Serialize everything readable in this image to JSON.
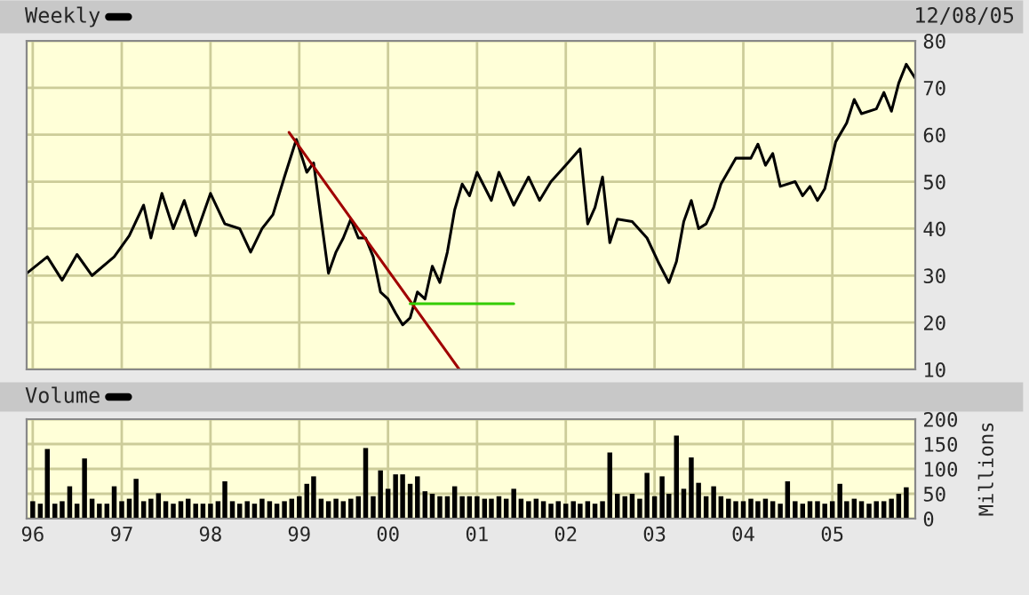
{
  "chart_data": [
    {
      "type": "line",
      "title": "Weekly",
      "annotations": [
        "12/08/05"
      ],
      "grid": true,
      "tick_labels": "y",
      "xlim": [
        "1995-12-07",
        "2005-12-08"
      ],
      "xticks": [
        {
          "value": "1996-01-01",
          "label": null
        },
        {
          "value": "1997-01-01",
          "label": null
        },
        {
          "value": "1998-01-01",
          "label": null
        },
        {
          "value": "1999-01-01",
          "label": null
        },
        {
          "value": "2000-01-01",
          "label": null
        },
        {
          "value": "2001-01-01",
          "label": null
        },
        {
          "value": "2002-01-01",
          "label": null
        },
        {
          "value": "2003-01-01",
          "label": null
        },
        {
          "value": "2004-01-01",
          "label": null
        },
        {
          "value": "2005-01-01",
          "label": null
        }
      ],
      "ylim": [
        10,
        80
      ],
      "yticks": [
        10,
        20,
        30,
        40,
        50,
        60,
        70,
        80
      ],
      "series": [
        {
          "color": "#000000",
          "x": [
            "1995-12-08",
            "1996-03-01",
            "1996-05-01",
            "1996-07-01",
            "1996-09-01",
            "1996-12-01",
            "1997-02-01",
            "1997-04-01",
            "1997-05-01",
            "1997-06-15",
            "1997-08-01",
            "1997-09-15",
            "1997-11-01",
            "1998-01-01",
            "1998-03-01",
            "1998-05-01",
            "1998-06-15",
            "1998-08-01",
            "1998-09-15",
            "1998-11-01",
            "1998-12-20",
            "1999-02-01",
            "1999-03-01",
            "1999-04-01",
            "1999-05-01",
            "1999-06-01",
            "1999-07-01",
            "1999-08-01",
            "1999-09-01",
            "1999-10-01",
            "1999-11-01",
            "1999-12-01",
            "2000-01-01",
            "2000-02-01",
            "2000-03-01",
            "2000-04-01",
            "2000-05-01",
            "2000-06-01",
            "2000-07-01",
            "2000-08-01",
            "2000-09-01",
            "2000-10-01",
            "2000-11-01",
            "2000-12-01",
            "2001-01-01",
            "2001-03-01",
            "2001-04-01",
            "2001-06-01",
            "2001-08-01",
            "2001-09-15",
            "2001-11-01",
            "2002-01-01",
            "2002-03-01",
            "2002-04-01",
            "2002-05-01",
            "2002-06-01",
            "2002-07-01",
            "2002-08-01",
            "2002-10-01",
            "2002-12-01",
            "2003-01-15",
            "2003-03-01",
            "2003-04-01",
            "2003-05-01",
            "2003-06-01",
            "2003-07-01",
            "2003-08-01",
            "2003-09-01",
            "2003-10-01",
            "2003-12-01",
            "2004-02-01",
            "2004-03-01",
            "2004-04-01",
            "2004-05-01",
            "2004-06-01",
            "2004-08-01",
            "2004-09-01",
            "2004-10-01",
            "2004-11-01",
            "2004-12-01",
            "2005-01-15",
            "2005-03-01",
            "2005-04-01",
            "2005-05-01",
            "2005-07-01",
            "2005-08-01",
            "2005-09-01",
            "2005-10-01",
            "2005-11-01",
            "2005-12-08"
          ],
          "values": [
            30.5,
            34,
            29,
            34.5,
            30,
            34,
            38.5,
            45,
            38,
            47.5,
            40,
            46,
            38.5,
            47.5,
            41,
            40,
            35,
            40,
            43,
            51,
            59,
            52,
            54,
            42,
            30.5,
            35,
            38,
            42,
            38,
            38,
            34,
            26.5,
            25,
            22,
            19.5,
            21,
            26.5,
            25,
            32,
            28.5,
            35,
            44,
            49.5,
            47,
            52,
            46,
            52,
            45,
            51,
            46,
            50,
            53.5,
            57,
            41,
            44.5,
            51,
            37,
            42,
            41.5,
            38,
            33,
            28.5,
            33,
            41.5,
            46,
            40,
            41,
            44.5,
            49.5,
            55,
            55,
            58,
            53.5,
            56,
            49,
            50,
            47,
            49,
            46,
            48.5,
            58.5,
            62.5,
            67.5,
            64.5,
            65.5,
            69,
            65,
            71,
            75,
            72
          ]
        },
        {
          "color": "#a00000",
          "x": [
            "1998-11-20",
            "2000-10-20"
          ],
          "values": [
            60.5,
            10
          ]
        },
        {
          "color": "#33cc00",
          "x": [
            "2000-04-01",
            "2001-06-01"
          ],
          "values": [
            24,
            24
          ]
        }
      ]
    },
    {
      "type": "bar",
      "title": "Volume",
      "ylabel": "Millions",
      "grid": true,
      "color": "#000000",
      "xlim": [
        "1995-12-07",
        "2005-12-08"
      ],
      "xticks": [
        {
          "value": "1996-01-01",
          "label": "96"
        },
        {
          "value": "1997-01-01",
          "label": "97"
        },
        {
          "value": "1998-01-01",
          "label": "98"
        },
        {
          "value": "1999-01-01",
          "label": "99"
        },
        {
          "value": "2000-01-01",
          "label": "00"
        },
        {
          "value": "2001-01-01",
          "label": "01"
        },
        {
          "value": "2002-01-01",
          "label": "02"
        },
        {
          "value": "2003-01-01",
          "label": "03"
        },
        {
          "value": "2004-01-01",
          "label": "04"
        },
        {
          "value": "2005-01-01",
          "label": "05"
        }
      ],
      "ylim": [
        0,
        200
      ],
      "yticks": [
        0,
        50,
        100,
        150,
        200
      ],
      "x": [
        "1996-01-01",
        "1996-02-01",
        "1996-03-01",
        "1996-04-01",
        "1996-05-01",
        "1996-06-01",
        "1996-07-01",
        "1996-08-01",
        "1996-09-01",
        "1996-10-01",
        "1996-11-01",
        "1996-12-01",
        "1997-01-01",
        "1997-02-01",
        "1997-03-01",
        "1997-04-01",
        "1997-05-01",
        "1997-06-01",
        "1997-07-01",
        "1997-08-01",
        "1997-09-01",
        "1997-10-01",
        "1997-11-01",
        "1997-12-01",
        "1998-01-01",
        "1998-02-01",
        "1998-03-01",
        "1998-04-01",
        "1998-05-01",
        "1998-06-01",
        "1998-07-01",
        "1998-08-01",
        "1998-09-01",
        "1998-10-01",
        "1998-11-01",
        "1998-12-01",
        "1999-01-01",
        "1999-02-01",
        "1999-03-01",
        "1999-04-01",
        "1999-05-01",
        "1999-06-01",
        "1999-07-01",
        "1999-08-01",
        "1999-09-01",
        "1999-10-01",
        "1999-11-01",
        "1999-12-01",
        "2000-01-01",
        "2000-02-01",
        "2000-03-01",
        "2000-04-01",
        "2000-05-01",
        "2000-06-01",
        "2000-07-01",
        "2000-08-01",
        "2000-09-01",
        "2000-10-01",
        "2000-11-01",
        "2000-12-01",
        "2001-01-01",
        "2001-02-01",
        "2001-03-01",
        "2001-04-01",
        "2001-05-01",
        "2001-06-01",
        "2001-07-01",
        "2001-08-01",
        "2001-09-01",
        "2001-10-01",
        "2001-11-01",
        "2001-12-01",
        "2002-01-01",
        "2002-02-01",
        "2002-03-01",
        "2002-04-01",
        "2002-05-01",
        "2002-06-01",
        "2002-07-01",
        "2002-08-01",
        "2002-09-01",
        "2002-10-01",
        "2002-11-01",
        "2002-12-01",
        "2003-01-01",
        "2003-02-01",
        "2003-03-01",
        "2003-04-01",
        "2003-05-01",
        "2003-06-01",
        "2003-07-01",
        "2003-08-01",
        "2003-09-01",
        "2003-10-01",
        "2003-11-01",
        "2003-12-01",
        "2004-01-01",
        "2004-02-01",
        "2004-03-01",
        "2004-04-01",
        "2004-05-01",
        "2004-06-01",
        "2004-07-01",
        "2004-08-01",
        "2004-09-01",
        "2004-10-01",
        "2004-11-01",
        "2004-12-01",
        "2005-01-01",
        "2005-02-01",
        "2005-03-01",
        "2005-04-01",
        "2005-05-01",
        "2005-06-01",
        "2005-07-01",
        "2005-08-01",
        "2005-09-01",
        "2005-10-01",
        "2005-11-01"
      ],
      "values": [
        35,
        30,
        140,
        30,
        35,
        65,
        30,
        121,
        40,
        30,
        30,
        65,
        35,
        40,
        80,
        35,
        40,
        51,
        35,
        30,
        35,
        40,
        30,
        30,
        30,
        35,
        75,
        35,
        30,
        35,
        30,
        40,
        35,
        30,
        35,
        40,
        45,
        70,
        85,
        40,
        35,
        40,
        35,
        40,
        45,
        142,
        45,
        97,
        60,
        89,
        89,
        70,
        85,
        55,
        50,
        45,
        45,
        65,
        45,
        45,
        45,
        40,
        40,
        45,
        40,
        60,
        40,
        35,
        40,
        35,
        30,
        35,
        30,
        35,
        30,
        35,
        30,
        35,
        133,
        50,
        45,
        50,
        40,
        92,
        45,
        85,
        50,
        167,
        60,
        123,
        72,
        45,
        65,
        45,
        40,
        35,
        35,
        40,
        35,
        40,
        35,
        30,
        75,
        35,
        30,
        35,
        35,
        30,
        35,
        70,
        35,
        40,
        35,
        30,
        35,
        35,
        40,
        50,
        63
      ]
    }
  ]
}
